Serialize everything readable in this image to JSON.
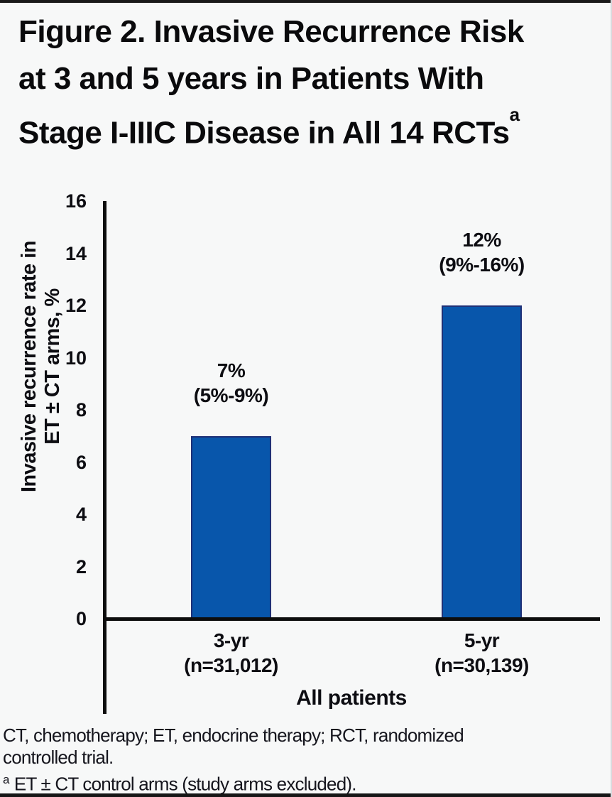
{
  "title": {
    "lines": [
      "Figure 2. Invasive Recurrence Risk",
      "at 3 and 5 years in Patients With",
      "Stage I-IIIC Disease in All 14 RCTs"
    ],
    "superscript": "a"
  },
  "chart_data": {
    "type": "bar",
    "title": "Figure 2. Invasive Recurrence Risk at 3 and 5 years in Patients With Stage I-IIIC Disease in All 14 RCTs",
    "ylabel": "Invasive recurrence rate in ET ± CT arms, %",
    "ylabel_lines": [
      "Invasive recurrence rate in",
      "ET ± CT arms, %"
    ],
    "xlabel": "All patients",
    "ylim": [
      0,
      16
    ],
    "yticks": [
      0,
      2,
      4,
      6,
      8,
      10,
      12,
      14,
      16
    ],
    "grid": false,
    "legend": "none",
    "bar_color": "#0856ab",
    "bar_border_color": "#1f3076",
    "categories": [
      "3-yr",
      "5-yr"
    ],
    "values": [
      7,
      12
    ],
    "bars": [
      {
        "category": "3-yr",
        "n_label": "(n=31,012)",
        "value": 7,
        "value_label": "7%",
        "ci_label": "(5%-9%)",
        "ci_low": 5,
        "ci_high": 9
      },
      {
        "category": "5-yr",
        "n_label": "(n=30,139)",
        "value": 12,
        "value_label": "12%",
        "ci_label": "(9%-16%)",
        "ci_low": 9,
        "ci_high": 16
      }
    ]
  },
  "footnotes": {
    "lines": [
      "CT, chemotherapy; ET, endocrine therapy; RCT, randomized",
      "controlled trial."
    ],
    "superscript": "a",
    "superscript_text": "ET ± CT control arms (study arms excluded)."
  }
}
